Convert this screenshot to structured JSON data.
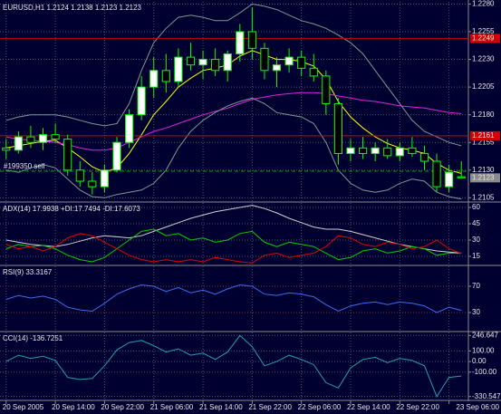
{
  "chart_data": [
    {
      "type": "candlestick",
      "title": "EURUSD,H1  1.2124 1.2138 1.2123 1.2123",
      "categories": [
        "20 Sep 2005",
        null,
        null,
        null,
        "20 Sep 14:00",
        null,
        null,
        null,
        "20 Sep 22:00",
        null,
        null,
        null,
        "21 Sep 06:00",
        null,
        null,
        null,
        "21 Sep 14:00",
        null,
        null,
        null,
        "21 Sep 22:00",
        null,
        null,
        null,
        "22 Sep 06:00",
        null,
        null,
        null,
        "22 Sep 14:00",
        null,
        null,
        null,
        "22 Sep 22:00",
        null,
        null,
        null,
        "23 Sep 06:00",
        null
      ],
      "open": [
        1.215,
        1.2148,
        1.216,
        1.2155,
        1.2162,
        1.2158,
        1.213,
        1.212,
        1.2115,
        1.213,
        1.2155,
        1.218,
        1.2205,
        1.222,
        1.221,
        1.2232,
        1.2225,
        1.223,
        1.222,
        1.2235,
        1.2255,
        1.224,
        1.222,
        1.2225,
        1.2232,
        1.2222,
        1.2215,
        1.219,
        1.2145,
        1.215,
        1.2145,
        1.215,
        1.2143,
        1.215,
        1.2145,
        1.2138,
        1.2115,
        1.2124
      ],
      "high": [
        1.2158,
        1.2165,
        1.217,
        1.2168,
        1.2172,
        1.2162,
        1.2138,
        1.2128,
        1.2135,
        1.216,
        1.2185,
        1.2215,
        1.2232,
        1.2235,
        1.224,
        1.2245,
        1.2238,
        1.224,
        1.2238,
        1.2262,
        1.2277,
        1.2245,
        1.2232,
        1.224,
        1.2238,
        1.2235,
        1.222,
        1.2195,
        1.2158,
        1.216,
        1.2155,
        1.2158,
        1.2155,
        1.216,
        1.2152,
        1.2145,
        1.2135,
        1.2138
      ],
      "low": [
        1.214,
        1.2145,
        1.215,
        1.2148,
        1.2155,
        1.2125,
        1.2115,
        1.2108,
        1.211,
        1.2128,
        1.215,
        1.2175,
        1.2195,
        1.22,
        1.2205,
        1.222,
        1.2212,
        1.2215,
        1.221,
        1.2228,
        1.223,
        1.2212,
        1.2205,
        1.2218,
        1.2215,
        1.221,
        1.218,
        1.2135,
        1.2138,
        1.214,
        1.2138,
        1.214,
        1.2138,
        1.2142,
        1.213,
        1.211,
        1.211,
        1.2123
      ],
      "close": [
        1.2148,
        1.216,
        1.2155,
        1.2162,
        1.2158,
        1.213,
        1.212,
        1.2115,
        1.213,
        1.2155,
        1.218,
        1.2205,
        1.222,
        1.221,
        1.2232,
        1.2225,
        1.223,
        1.222,
        1.2235,
        1.2255,
        1.224,
        1.222,
        1.2225,
        1.2232,
        1.2222,
        1.2215,
        1.219,
        1.2145,
        1.215,
        1.2145,
        1.215,
        1.2143,
        1.215,
        1.2145,
        1.2138,
        1.2115,
        1.2128,
        1.2123
      ],
      "up_color": "#ffffff",
      "down_color": "#000000",
      "wick_color": "#00ff00",
      "overlays": [
        {
          "color": "#ffff00",
          "values": [
            1.215,
            1.2152,
            1.2154,
            1.2156,
            1.2157,
            1.215,
            1.2142,
            1.2133,
            1.2128,
            1.2132,
            1.2145,
            1.2162,
            1.218,
            1.2192,
            1.2205,
            1.2213,
            1.222,
            1.2222,
            1.2225,
            1.2233,
            1.2238,
            1.2234,
            1.223,
            1.223,
            1.2228,
            1.2224,
            1.2212,
            1.2192,
            1.2178,
            1.2168,
            1.216,
            1.2154,
            1.215,
            1.2148,
            1.2145,
            1.2136,
            1.213,
            1.2127
          ]
        },
        {
          "color": "#e020e0",
          "values": [
            1.216,
            1.2158,
            1.2157,
            1.2156,
            1.2155,
            1.2153,
            1.215,
            1.2148,
            1.2148,
            1.215,
            1.2155,
            1.216,
            1.2165,
            1.2168,
            1.2172,
            1.2176,
            1.218,
            1.2183,
            1.2186,
            1.219,
            1.2194,
            1.2196,
            1.2198,
            1.2199,
            1.22,
            1.22,
            1.2199,
            1.2197,
            1.2195,
            1.2193,
            1.2192,
            1.219,
            1.2188,
            1.2187,
            1.2186,
            1.2184,
            1.2182,
            1.2181
          ]
        },
        {
          "color": "#7a9a8a",
          "values": [
            1.2175,
            1.2178,
            1.218,
            1.218,
            1.218,
            1.2178,
            1.2175,
            1.2172,
            1.217,
            1.2172,
            1.219,
            1.222,
            1.2245,
            1.2258,
            1.2268,
            1.227,
            1.2268,
            1.2265,
            1.2265,
            1.2272,
            1.228,
            1.2278,
            1.2275,
            1.227,
            1.2265,
            1.2262,
            1.2258,
            1.2252,
            1.2245,
            1.2235,
            1.222,
            1.2205,
            1.219,
            1.2175,
            1.2165,
            1.216,
            1.2155,
            1.2152
          ]
        },
        {
          "color": "#7a9a8a",
          "values": [
            1.213,
            1.2128,
            1.2132,
            1.2135,
            1.2132,
            1.2122,
            1.2112,
            1.2106,
            1.2105,
            1.2108,
            1.211,
            1.2112,
            1.2118,
            1.213,
            1.215,
            1.2165,
            1.2175,
            1.2182,
            1.2188,
            1.2192,
            1.2195,
            1.219,
            1.2182,
            1.218,
            1.2178,
            1.2172,
            1.2155,
            1.213,
            1.2118,
            1.2112,
            1.211,
            1.2112,
            1.2118,
            1.2122,
            1.212,
            1.211,
            1.2106,
            1.2104
          ]
        }
      ],
      "levels": [
        1.2249,
        1.2161
      ],
      "level_color": "#d00000",
      "current_price": 1.2123,
      "order_line": {
        "value": 1.2129,
        "label": "#199350 sell",
        "color": "#00a000"
      },
      "ylim": [
        1.2102,
        1.2282
      ],
      "yticks": [
        {
          "value": 1.228,
          "label": "1.2280"
        },
        1.2255,
        {
          "value": 1.223,
          "label": "1.2230"
        },
        1.2205,
        {
          "value": 1.218,
          "label": "1.2180"
        },
        1.2155,
        {
          "value": 1.213,
          "label": "1.2130"
        },
        1.2105
      ],
      "grid": true
    },
    {
      "type": "line",
      "title": "ADX(14) 17.9938 +DI:17.7494 -DI:17.6073",
      "series": [
        {
          "color": "#d0d0d0",
          "values": [
            30,
            28,
            26,
            25,
            24,
            26,
            29,
            32,
            34,
            33,
            32,
            34,
            38,
            42,
            46,
            50,
            53,
            56,
            58,
            60,
            62,
            59,
            55,
            50,
            46,
            42,
            40,
            40,
            38,
            35,
            32,
            29,
            26,
            24,
            22,
            20,
            19,
            17.9938
          ]
        },
        {
          "color": "#00d000",
          "values": [
            22,
            26,
            24,
            25,
            22,
            16,
            12,
            10,
            14,
            22,
            30,
            38,
            40,
            34,
            36,
            30,
            32,
            28,
            30,
            36,
            38,
            28,
            24,
            28,
            26,
            24,
            18,
            12,
            14,
            20,
            22,
            18,
            20,
            24,
            22,
            16,
            18,
            17.7494
          ]
        },
        {
          "color": "#e00000",
          "values": [
            26,
            22,
            24,
            20,
            24,
            32,
            36,
            34,
            28,
            22,
            16,
            12,
            10,
            12,
            10,
            12,
            10,
            14,
            12,
            10,
            9,
            16,
            18,
            14,
            16,
            18,
            24,
            34,
            32,
            26,
            24,
            28,
            26,
            22,
            24,
            30,
            22,
            17.6073
          ]
        }
      ],
      "ylim": [
        7.5,
        64.2
      ],
      "yticks": [
        60,
        45,
        30,
        15
      ],
      "grid": true
    },
    {
      "type": "line",
      "title": "RSI(9) 33.3167",
      "series": [
        {
          "color": "#3a6cf0",
          "values": [
            50,
            56,
            52,
            55,
            50,
            38,
            34,
            32,
            44,
            58,
            66,
            72,
            70,
            62,
            68,
            60,
            64,
            58,
            66,
            72,
            70,
            58,
            56,
            60,
            58,
            54,
            42,
            32,
            40,
            44,
            46,
            42,
            46,
            44,
            40,
            30,
            38,
            33.3167
          ]
        }
      ],
      "ylim": [
        2.4,
        100.3
      ],
      "yticks": [
        70,
        30
      ],
      "grid": true
    },
    {
      "type": "line",
      "title": "CCI(14) -136.7251",
      "series": [
        {
          "color": "#20a0b0",
          "values": [
            0,
            60,
            30,
            50,
            10,
            -150,
            -170,
            -160,
            -40,
            110,
            180,
            200,
            150,
            90,
            120,
            60,
            80,
            20,
            90,
            246.647,
            140,
            -40,
            0,
            60,
            20,
            -30,
            -200,
            -250,
            -60,
            20,
            40,
            -10,
            30,
            10,
            -40,
            -330.547,
            -150,
            -136.7251
          ]
        }
      ],
      "ylim": [
        -359,
        275
      ],
      "yticks": [
        246.647,
        {
          "value": 100,
          "label": "100.00"
        },
        {
          "value": 0,
          "label": "0.00"
        },
        {
          "value": -100,
          "label": "-100.00"
        },
        -330.547
      ],
      "grid": true
    }
  ]
}
